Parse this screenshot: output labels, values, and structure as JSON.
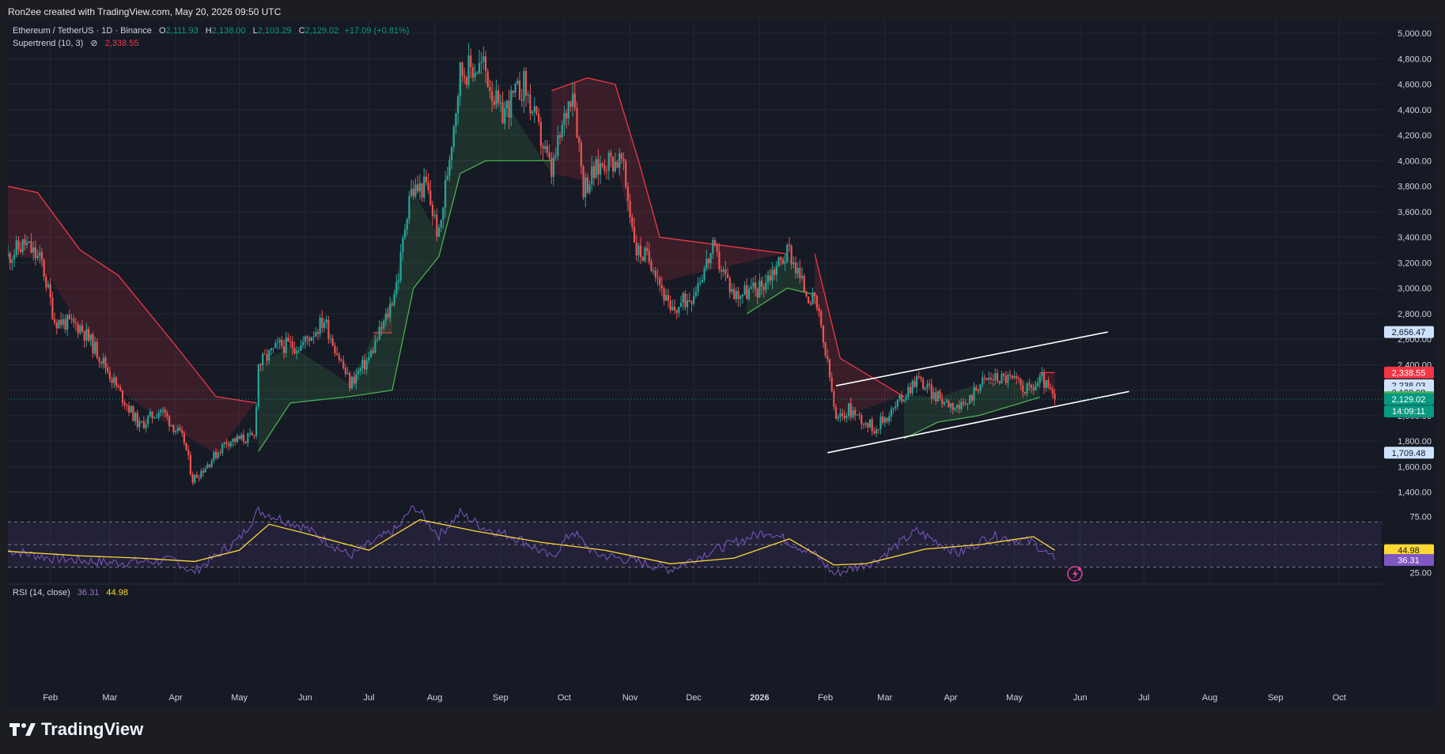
{
  "header": {
    "credit": "Ron2ee created with TradingView.com, May 20, 2026 09:50 UTC"
  },
  "legend": {
    "symbol": "Ethereum / TetherUS · 1D · Binance",
    "o_label": "O",
    "o": "2,111.93",
    "h_label": "H",
    "h": "2,138.00",
    "l_label": "L",
    "l": "2,103.29",
    "c_label": "C",
    "c": "2,129.02",
    "change": "+17.09 (+0.81%)",
    "supertrend_label": "Supertrend (10, 3)",
    "supertrend_symbol": "⊘",
    "supertrend_value": "2,338.55",
    "rsi_label": "RSI (14, close)",
    "rsi_value": "36.31",
    "rsi_ma_value": "44.98"
  },
  "footer": {
    "brand": "TradingView"
  },
  "colors": {
    "up": "#26a69a",
    "down": "#ef5350",
    "supertrend_up": "#4caf50",
    "supertrend_down": "#f23645",
    "rsi": "#7e57c2",
    "rsi_ma": "#fdd835",
    "channel": "#ffffff",
    "grid": "#242833",
    "text": "#d1d4dc"
  },
  "chart_data": {
    "type": "candlestick",
    "symbol": "ETH/USDT",
    "timeframe": "1D",
    "y_axis": {
      "ticks": [
        "5,000.00",
        "4,800.00",
        "4,600.00",
        "4,400.00",
        "4,200.00",
        "4,000.00",
        "3,800.00",
        "3,600.00",
        "3,400.00",
        "3,200.00",
        "3,000.00",
        "2,800.00",
        "2,600.00",
        "2,400.00",
        "2,200.00",
        "2,000.00",
        "1,800.00",
        "1,600.00",
        "1,400.00"
      ],
      "range": [
        1330,
        5100
      ]
    },
    "x_axis": {
      "ticks": [
        {
          "label": "Feb",
          "date": "2025-02-01"
        },
        {
          "label": "Mar",
          "date": "2025-03-01"
        },
        {
          "label": "Apr",
          "date": "2025-04-01"
        },
        {
          "label": "May",
          "date": "2025-05-01"
        },
        {
          "label": "Jun",
          "date": "2025-06-01"
        },
        {
          "label": "Jul",
          "date": "2025-07-01"
        },
        {
          "label": "Aug",
          "date": "2025-08-01"
        },
        {
          "label": "Sep",
          "date": "2025-09-01"
        },
        {
          "label": "Oct",
          "date": "2025-10-01"
        },
        {
          "label": "Nov",
          "date": "2025-11-01"
        },
        {
          "label": "Dec",
          "date": "2025-12-01"
        },
        {
          "label": "2026",
          "date": "2026-01-01"
        },
        {
          "label": "Feb",
          "date": "2026-02-01"
        },
        {
          "label": "Mar",
          "date": "2026-03-01"
        },
        {
          "label": "Apr",
          "date": "2026-04-01"
        },
        {
          "label": "May",
          "date": "2026-05-01"
        },
        {
          "label": "Jun",
          "date": "2026-06-01"
        },
        {
          "label": "Jul",
          "date": "2026-07-01"
        },
        {
          "label": "Aug",
          "date": "2026-08-01"
        },
        {
          "label": "Sep",
          "date": "2026-09-01"
        },
        {
          "label": "Oct",
          "date": "2026-10-01"
        }
      ],
      "range": [
        "2025-01-12",
        "2026-10-21"
      ]
    },
    "price_path": [
      [
        "2025-01-12",
        3250
      ],
      [
        "2025-01-20",
        3350
      ],
      [
        "2025-01-28",
        3200
      ],
      [
        "2025-02-03",
        2750
      ],
      [
        "2025-02-15",
        2700
      ],
      [
        "2025-02-25",
        2450
      ],
      [
        "2025-03-05",
        2200
      ],
      [
        "2025-03-15",
        1920
      ],
      [
        "2025-03-25",
        2050
      ],
      [
        "2025-04-05",
        1800
      ],
      [
        "2025-04-09",
        1500
      ],
      [
        "2025-04-15",
        1600
      ],
      [
        "2025-04-25",
        1800
      ],
      [
        "2025-05-08",
        1830
      ],
      [
        "2025-05-10",
        2400
      ],
      [
        "2025-05-20",
        2550
      ],
      [
        "2025-05-30",
        2550
      ],
      [
        "2025-06-10",
        2750
      ],
      [
        "2025-06-22",
        2250
      ],
      [
        "2025-07-01",
        2450
      ],
      [
        "2025-07-10",
        2800
      ],
      [
        "2025-07-15",
        3100
      ],
      [
        "2025-07-20",
        3750
      ],
      [
        "2025-07-28",
        3800
      ],
      [
        "2025-08-03",
        3400
      ],
      [
        "2025-08-13",
        4700
      ],
      [
        "2025-08-24",
        4750
      ],
      [
        "2025-09-01",
        4350
      ],
      [
        "2025-09-12",
        4600
      ],
      [
        "2025-09-25",
        3900
      ],
      [
        "2025-10-05",
        4600
      ],
      [
        "2025-10-10",
        3800
      ],
      [
        "2025-10-20",
        4000
      ],
      [
        "2025-10-28",
        4000
      ],
      [
        "2025-11-04",
        3300
      ],
      [
        "2025-11-12",
        3200
      ],
      [
        "2025-11-20",
        2800
      ],
      [
        "2025-11-30",
        2950
      ],
      [
        "2025-12-10",
        3300
      ],
      [
        "2025-12-20",
        2950
      ],
      [
        "2026-01-01",
        3000
      ],
      [
        "2026-01-10",
        3200
      ],
      [
        "2026-01-15",
        3300
      ],
      [
        "2026-01-22",
        3000
      ],
      [
        "2026-01-28",
        2850
      ],
      [
        "2026-02-03",
        2300
      ],
      [
        "2026-02-06",
        1950
      ],
      [
        "2026-02-12",
        2050
      ],
      [
        "2026-02-24",
        1900
      ],
      [
        "2026-03-05",
        2050
      ],
      [
        "2026-03-16",
        2300
      ],
      [
        "2026-03-25",
        2150
      ],
      [
        "2026-04-01",
        2100
      ],
      [
        "2026-04-07",
        2050
      ],
      [
        "2026-04-14",
        2250
      ],
      [
        "2026-04-20",
        2300
      ],
      [
        "2026-04-28",
        2300
      ],
      [
        "2026-05-08",
        2200
      ],
      [
        "2026-05-14",
        2290
      ],
      [
        "2026-05-18",
        2180
      ],
      [
        "2026-05-20",
        2129
      ]
    ],
    "supertrend": {
      "down_segments": [
        [
          [
            "2025-01-12",
            3800
          ],
          [
            "2025-01-26",
            3750
          ],
          [
            "2025-02-15",
            3300
          ],
          [
            "2025-03-05",
            3100
          ],
          [
            "2025-04-01",
            2550
          ],
          [
            "2025-04-20",
            2150
          ],
          [
            "2025-05-09",
            2100
          ]
        ],
        [
          [
            "2025-07-03",
            2650
          ],
          [
            "2025-07-12",
            2650
          ]
        ],
        [
          [
            "2025-09-25",
            4550
          ],
          [
            "2025-10-12",
            4650
          ],
          [
            "2025-10-25",
            4600
          ],
          [
            "2025-11-05",
            4000
          ],
          [
            "2025-11-15",
            3400
          ],
          [
            "2026-01-14",
            3270
          ]
        ],
        [
          [
            "2026-01-27",
            3270
          ],
          [
            "2026-02-08",
            2450
          ],
          [
            "2026-03-10",
            2150
          ]
        ],
        [
          [
            "2026-05-13",
            2338.55
          ],
          [
            "2026-05-20",
            2338.55
          ]
        ]
      ],
      "up_segments": [
        [
          [
            "2025-05-10",
            1720
          ],
          [
            "2025-05-25",
            2100
          ],
          [
            "2025-06-22",
            2150
          ],
          [
            "2025-07-12",
            2200
          ],
          [
            "2025-07-22",
            3000
          ],
          [
            "2025-08-03",
            3250
          ],
          [
            "2025-08-13",
            3900
          ],
          [
            "2025-08-25",
            4000
          ],
          [
            "2025-09-25",
            4000
          ]
        ],
        [
          [
            "2025-12-26",
            2800
          ],
          [
            "2026-01-14",
            3000
          ],
          [
            "2026-01-27",
            2950
          ]
        ],
        [
          [
            "2026-03-10",
            1820
          ],
          [
            "2026-03-26",
            1950
          ],
          [
            "2026-04-14",
            2000
          ],
          [
            "2026-05-13",
            2144.55
          ]
        ]
      ]
    },
    "channel": {
      "upper": [
        [
          "2026-02-06",
          2235
        ],
        [
          "2026-06-14",
          2656.47
        ]
      ],
      "lower": [
        [
          "2026-02-02",
          1709.48
        ],
        [
          "2026-06-24",
          2190
        ]
      ]
    },
    "price_tags": [
      {
        "value": 2656.47,
        "label": "2,656.47",
        "bg": "#cfe3ff",
        "fg": "#131722"
      },
      {
        "value": 2338.55,
        "label": "2,338.55",
        "bg": "#f23645",
        "fg": "#ffffff"
      },
      {
        "value": 2238.03,
        "label": "2,238.03",
        "bg": "#cfe3ff",
        "fg": "#131722"
      },
      {
        "value": 2182.98,
        "label": "2,182.98",
        "bg": "#cfe3ff",
        "fg": "#131722"
      },
      {
        "value": 2144.55,
        "label": "2,144.55",
        "bg": "#4caf50",
        "fg": "#ffffff"
      },
      {
        "value": 2129.02,
        "label": "2,129.02",
        "bg": "#089981",
        "fg": "#ffffff"
      },
      {
        "value": 1709.48,
        "label": "1,709.48",
        "bg": "#cfe3ff",
        "fg": "#131722"
      }
    ],
    "countdown": "14:09:11",
    "rsi": {
      "range": [
        15,
        85
      ],
      "levels": [
        70,
        50,
        30
      ],
      "ticks": [
        "75.00",
        "25.00"
      ],
      "rsi_path": [
        [
          "2025-01-12",
          45
        ],
        [
          "2025-02-01",
          38
        ],
        [
          "2025-03-01",
          34
        ],
        [
          "2025-04-01",
          36
        ],
        [
          "2025-04-09",
          25
        ],
        [
          "2025-05-01",
          55
        ],
        [
          "2025-05-10",
          80
        ],
        [
          "2025-06-01",
          65
        ],
        [
          "2025-06-22",
          40
        ],
        [
          "2025-07-15",
          65
        ],
        [
          "2025-07-22",
          85
        ],
        [
          "2025-08-03",
          58
        ],
        [
          "2025-08-13",
          78
        ],
        [
          "2025-08-24",
          65
        ],
        [
          "2025-09-10",
          55
        ],
        [
          "2025-09-25",
          38
        ],
        [
          "2025-10-05",
          62
        ],
        [
          "2025-10-15",
          42
        ],
        [
          "2025-11-04",
          35
        ],
        [
          "2025-11-20",
          28
        ],
        [
          "2025-12-10",
          45
        ],
        [
          "2026-01-05",
          62
        ],
        [
          "2026-01-28",
          40
        ],
        [
          "2026-02-05",
          24
        ],
        [
          "2026-02-24",
          35
        ],
        [
          "2026-03-16",
          62
        ],
        [
          "2026-04-05",
          42
        ],
        [
          "2026-04-20",
          58
        ],
        [
          "2026-05-10",
          52
        ],
        [
          "2026-05-20",
          36.31
        ]
      ],
      "ma_path": [
        [
          "2025-01-12",
          44
        ],
        [
          "2025-02-15",
          40
        ],
        [
          "2025-03-15",
          38
        ],
        [
          "2025-04-10",
          35
        ],
        [
          "2025-05-01",
          45
        ],
        [
          "2025-05-15",
          68
        ],
        [
          "2025-06-05",
          58
        ],
        [
          "2025-07-01",
          45
        ],
        [
          "2025-07-25",
          72
        ],
        [
          "2025-08-20",
          62
        ],
        [
          "2025-09-20",
          52
        ],
        [
          "2025-10-20",
          45
        ],
        [
          "2025-11-20",
          33
        ],
        [
          "2025-12-20",
          38
        ],
        [
          "2026-01-15",
          55
        ],
        [
          "2026-02-05",
          32
        ],
        [
          "2026-02-20",
          33
        ],
        [
          "2026-03-20",
          46
        ],
        [
          "2026-04-15",
          50
        ],
        [
          "2026-05-10",
          57
        ],
        [
          "2026-05-20",
          44.98
        ]
      ],
      "tags": [
        {
          "value": 44.98,
          "label": "44.98",
          "bg": "#fdd835",
          "fg": "#131722"
        },
        {
          "value": 36.31,
          "label": "36.31",
          "bg": "#7e57c2",
          "fg": "#ffffff"
        }
      ]
    }
  }
}
